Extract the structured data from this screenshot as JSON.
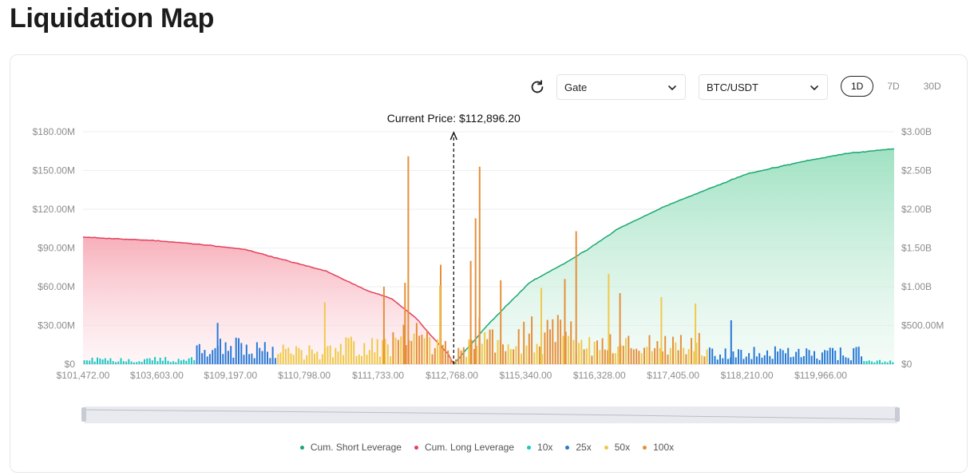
{
  "page": {
    "title": "Liquidation Map"
  },
  "controls": {
    "exchange": "Gate",
    "pair": "BTC/USDT",
    "ranges": [
      {
        "label": "1D",
        "active": true
      },
      {
        "label": "7D",
        "active": false
      },
      {
        "label": "30D",
        "active": false
      }
    ]
  },
  "colors": {
    "short": "#1aa870",
    "long": "#e5405b",
    "lev10x": "#1dc7c2",
    "lev25x": "#2979d6",
    "lev50x": "#f0c94a",
    "lev100x": "#e68f3a"
  },
  "chart_data": {
    "type": "bar",
    "current_price_label": "Current Price: $112,896.20",
    "current_price_position": 0.457,
    "x_tick_labels": [
      "$101,472.00",
      "$103,603.00",
      "$109,197.00",
      "$110,798.00",
      "$111,733.00",
      "$112,768.00",
      "$115,340.00",
      "$116,328.00",
      "$117,405.00",
      "$118,210.00",
      "$119,966.00"
    ],
    "y_left": {
      "ticks": [
        "$0",
        "$30.00M",
        "$60.00M",
        "$90.00M",
        "$120.00M",
        "$150.00M",
        "$180.00M"
      ],
      "range": [
        0,
        180
      ]
    },
    "y_right": {
      "ticks": [
        "$0",
        "$500.00M",
        "$1.00B",
        "$1.50B",
        "$2.00B",
        "$2.50B",
        "$3.00B"
      ],
      "range": [
        0,
        3000
      ]
    },
    "cum_long": {
      "name": "Cum. Long Leverage",
      "points": [
        [
          0,
          1640
        ],
        [
          0.08,
          1600
        ],
        [
          0.12,
          1570
        ],
        [
          0.16,
          1530
        ],
        [
          0.2,
          1480
        ],
        [
          0.25,
          1340
        ],
        [
          0.3,
          1200
        ],
        [
          0.35,
          950
        ],
        [
          0.38,
          850
        ],
        [
          0.41,
          600
        ],
        [
          0.43,
          360
        ],
        [
          0.45,
          130
        ],
        [
          0.457,
          0
        ]
      ]
    },
    "cum_short": {
      "name": "Cum. Short Leverage",
      "points": [
        [
          0.457,
          0
        ],
        [
          0.5,
          520
        ],
        [
          0.55,
          1050
        ],
        [
          0.6,
          1340
        ],
        [
          0.625,
          1500
        ],
        [
          0.66,
          1750
        ],
        [
          0.72,
          2050
        ],
        [
          0.78,
          2300
        ],
        [
          0.82,
          2460
        ],
        [
          0.88,
          2600
        ],
        [
          0.94,
          2720
        ],
        [
          1,
          2780
        ]
      ]
    },
    "series": [
      {
        "name": "10x",
        "segments": [
          [
            0,
            0.14,
            5
          ],
          [
            0.96,
            1,
            3
          ]
        ]
      },
      {
        "name": "25x",
        "segments": [
          [
            0.14,
            0.24,
            18
          ],
          [
            0.77,
            0.96,
            12
          ]
        ]
      },
      {
        "name": "50x",
        "segments": [
          [
            0.24,
            0.3,
            14
          ],
          [
            0.3,
            0.38,
            20
          ],
          [
            0.38,
            0.44,
            22
          ],
          [
            0.47,
            0.62,
            22
          ],
          [
            0.62,
            0.77,
            20
          ]
        ]
      },
      {
        "name": "100x",
        "segments": [
          [
            0.38,
            0.47,
            28
          ],
          [
            0.47,
            0.62,
            34
          ],
          [
            0.62,
            0.77,
            22
          ]
        ]
      }
    ],
    "peaks": [
      {
        "position": 0.401,
        "value": 161,
        "series": "100x"
      },
      {
        "position": 0.489,
        "value": 153,
        "series": "100x"
      },
      {
        "position": 0.484,
        "value": 113,
        "series": "100x"
      },
      {
        "position": 0.608,
        "value": 103,
        "series": "100x"
      },
      {
        "position": 0.397,
        "value": 63,
        "series": "100x"
      },
      {
        "position": 0.478,
        "value": 80,
        "series": "100x"
      },
      {
        "position": 0.441,
        "value": 77,
        "series": "100x"
      },
      {
        "position": 0.515,
        "value": 65,
        "series": "100x"
      },
      {
        "position": 0.371,
        "value": 60,
        "series": "100x"
      },
      {
        "position": 0.44,
        "value": 61,
        "series": "50x"
      },
      {
        "position": 0.648,
        "value": 70,
        "series": "50x"
      },
      {
        "position": 0.713,
        "value": 52,
        "series": "50x"
      },
      {
        "position": 0.755,
        "value": 47,
        "series": "50x"
      },
      {
        "position": 0.298,
        "value": 48,
        "series": "50x"
      },
      {
        "position": 0.565,
        "value": 59,
        "series": "50x"
      },
      {
        "position": 0.594,
        "value": 66,
        "series": "100x"
      },
      {
        "position": 0.662,
        "value": 55,
        "series": "100x"
      },
      {
        "position": 0.166,
        "value": 32,
        "series": "25x"
      },
      {
        "position": 0.799,
        "value": 34,
        "series": "25x"
      }
    ],
    "dip": {
      "positions": [
        0.443,
        0.474
      ],
      "zero_at": 0.457
    }
  },
  "legend": {
    "items": [
      "Cum. Short Leverage",
      "Cum. Long Leverage",
      "10x",
      "25x",
      "50x",
      "100x"
    ]
  }
}
